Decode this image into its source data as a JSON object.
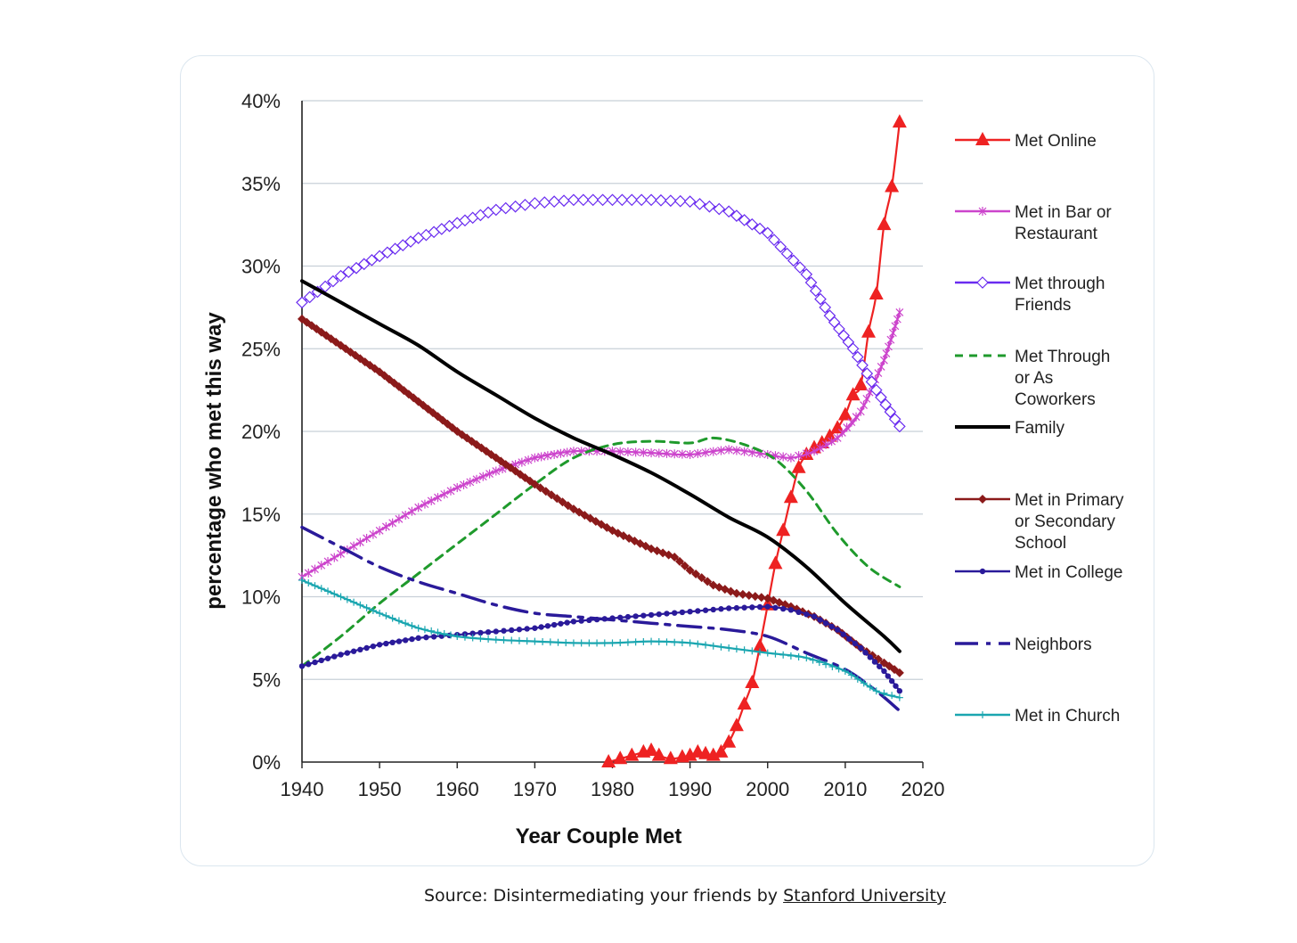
{
  "caption": {
    "text": "Source: Disintermediating your friends by",
    "link_text": "Stanford University"
  },
  "chart_data": {
    "type": "line",
    "title": "",
    "xlabel": "Year Couple Met",
    "ylabel": "percentage who met this way",
    "xlim": [
      1940,
      2020
    ],
    "ylim": [
      0,
      40
    ],
    "x_ticks": [
      "1940",
      "1950",
      "1960",
      "1970",
      "1980",
      "1990",
      "2000",
      "2010",
      "2020"
    ],
    "y_ticks": [
      "0%",
      "5%",
      "10%",
      "15%",
      "20%",
      "25%",
      "30%",
      "35%",
      "40%"
    ],
    "grid": "horizontal",
    "legend_position": "right",
    "series": [
      {
        "name": "Met Online",
        "color": "#ee2222",
        "marker": "triangle",
        "style": "solid",
        "points": [
          [
            1979.5,
            0
          ],
          [
            1981,
            0.2
          ],
          [
            1982.5,
            0.4
          ],
          [
            1984,
            0.6
          ],
          [
            1985,
            0.7
          ],
          [
            1986,
            0.4
          ],
          [
            1987.5,
            0.2
          ],
          [
            1989,
            0.3
          ],
          [
            1990,
            0.4
          ],
          [
            1991,
            0.6
          ],
          [
            1992,
            0.5
          ],
          [
            1993,
            0.4
          ],
          [
            1994,
            0.6
          ],
          [
            1995,
            1.2
          ],
          [
            1996,
            2.2
          ],
          [
            1997,
            3.5
          ],
          [
            1998,
            4.8
          ],
          [
            1999,
            7.0
          ],
          [
            2000,
            9.5
          ],
          [
            2001,
            12.0
          ],
          [
            2002,
            14.0
          ],
          [
            2003,
            16.0
          ],
          [
            2004,
            17.8
          ],
          [
            2005,
            18.6
          ],
          [
            2006,
            19.0
          ],
          [
            2007,
            19.3
          ],
          [
            2008,
            19.7
          ],
          [
            2009,
            20.2
          ],
          [
            2010,
            21.0
          ],
          [
            2011,
            22.2
          ],
          [
            2012,
            22.8
          ],
          [
            2013,
            26.0
          ],
          [
            2014,
            28.3
          ],
          [
            2015,
            32.5
          ],
          [
            2016,
            34.8
          ],
          [
            2017,
            38.7
          ]
        ]
      },
      {
        "name": "Met in Bar or Restaurant",
        "color": "#cc44cc",
        "marker": "star",
        "style": "solid",
        "points": [
          [
            1940,
            11.2
          ],
          [
            1945,
            12.6
          ],
          [
            1950,
            14.0
          ],
          [
            1955,
            15.4
          ],
          [
            1960,
            16.6
          ],
          [
            1965,
            17.6
          ],
          [
            1970,
            18.4
          ],
          [
            1975,
            18.8
          ],
          [
            1980,
            18.8
          ],
          [
            1985,
            18.7
          ],
          [
            1990,
            18.6
          ],
          [
            1995,
            18.9
          ],
          [
            2000,
            18.6
          ],
          [
            2003,
            18.4
          ],
          [
            2006,
            18.8
          ],
          [
            2009,
            19.6
          ],
          [
            2012,
            21.2
          ],
          [
            2015,
            24.3
          ],
          [
            2017,
            27.2
          ]
        ]
      },
      {
        "name": "Met through Friends",
        "color": "#6a2cf0",
        "marker": "diamond-open",
        "style": "solid",
        "points": [
          [
            1940,
            27.8
          ],
          [
            1945,
            29.4
          ],
          [
            1950,
            30.6
          ],
          [
            1955,
            31.7
          ],
          [
            1960,
            32.6
          ],
          [
            1965,
            33.4
          ],
          [
            1970,
            33.8
          ],
          [
            1975,
            34.0
          ],
          [
            1980,
            34.0
          ],
          [
            1985,
            34.0
          ],
          [
            1990,
            33.9
          ],
          [
            1995,
            33.3
          ],
          [
            2000,
            32.0
          ],
          [
            2005,
            29.5
          ],
          [
            2008,
            27.0
          ],
          [
            2011,
            25.0
          ],
          [
            2014,
            22.5
          ],
          [
            2017,
            20.3
          ]
        ]
      },
      {
        "name": "Met Through or As Coworkers",
        "color": "#1f9a2c",
        "marker": "none",
        "style": "dashed",
        "points": [
          [
            1940,
            5.8
          ],
          [
            1945,
            7.6
          ],
          [
            1950,
            9.6
          ],
          [
            1955,
            11.4
          ],
          [
            1960,
            13.2
          ],
          [
            1965,
            15.0
          ],
          [
            1970,
            16.8
          ],
          [
            1975,
            18.4
          ],
          [
            1980,
            19.2
          ],
          [
            1985,
            19.4
          ],
          [
            1990,
            19.3
          ],
          [
            1993,
            19.6
          ],
          [
            1997,
            19.2
          ],
          [
            2001,
            18.3
          ],
          [
            2005,
            16.4
          ],
          [
            2009,
            13.8
          ],
          [
            2013,
            11.8
          ],
          [
            2017,
            10.6
          ]
        ]
      },
      {
        "name": "Family",
        "color": "#000000",
        "marker": "none",
        "style": "solid-thick",
        "points": [
          [
            1940,
            29.1
          ],
          [
            1945,
            27.8
          ],
          [
            1950,
            26.5
          ],
          [
            1955,
            25.2
          ],
          [
            1960,
            23.6
          ],
          [
            1965,
            22.2
          ],
          [
            1970,
            20.8
          ],
          [
            1975,
            19.6
          ],
          [
            1980,
            18.6
          ],
          [
            1985,
            17.5
          ],
          [
            1990,
            16.2
          ],
          [
            1995,
            14.8
          ],
          [
            2000,
            13.6
          ],
          [
            2005,
            11.8
          ],
          [
            2010,
            9.6
          ],
          [
            2015,
            7.6
          ],
          [
            2017,
            6.7
          ]
        ]
      },
      {
        "name": "Met in Primary or Secondary School",
        "color": "#8b1a1a",
        "marker": "diamond",
        "style": "solid",
        "points": [
          [
            1940,
            26.8
          ],
          [
            1945,
            25.2
          ],
          [
            1950,
            23.6
          ],
          [
            1955,
            21.8
          ],
          [
            1960,
            20.0
          ],
          [
            1965,
            18.4
          ],
          [
            1970,
            16.8
          ],
          [
            1975,
            15.3
          ],
          [
            1980,
            14.0
          ],
          [
            1985,
            12.9
          ],
          [
            1988,
            12.4
          ],
          [
            1990,
            11.6
          ],
          [
            1993,
            10.7
          ],
          [
            1996,
            10.2
          ],
          [
            2000,
            9.9
          ],
          [
            2003,
            9.4
          ],
          [
            2006,
            8.8
          ],
          [
            2009,
            8.0
          ],
          [
            2012,
            6.9
          ],
          [
            2015,
            6.0
          ],
          [
            2017,
            5.4
          ]
        ]
      },
      {
        "name": "Met in College",
        "color": "#2a1a9a",
        "marker": "dot",
        "style": "solid",
        "points": [
          [
            1940,
            5.8
          ],
          [
            1945,
            6.5
          ],
          [
            1950,
            7.1
          ],
          [
            1955,
            7.5
          ],
          [
            1960,
            7.7
          ],
          [
            1965,
            7.9
          ],
          [
            1970,
            8.1
          ],
          [
            1975,
            8.5
          ],
          [
            1980,
            8.7
          ],
          [
            1985,
            8.9
          ],
          [
            1990,
            9.1
          ],
          [
            1995,
            9.3
          ],
          [
            2000,
            9.4
          ],
          [
            2003,
            9.2
          ],
          [
            2006,
            8.8
          ],
          [
            2009,
            8.0
          ],
          [
            2012,
            6.9
          ],
          [
            2015,
            5.5
          ],
          [
            2017,
            4.3
          ]
        ]
      },
      {
        "name": "Neighbors",
        "color": "#2a1a9a",
        "marker": "none",
        "style": "dashdot",
        "points": [
          [
            1940,
            14.2
          ],
          [
            1945,
            13.0
          ],
          [
            1950,
            11.8
          ],
          [
            1955,
            10.9
          ],
          [
            1960,
            10.2
          ],
          [
            1965,
            9.5
          ],
          [
            1970,
            9.0
          ],
          [
            1975,
            8.8
          ],
          [
            1980,
            8.6
          ],
          [
            1985,
            8.4
          ],
          [
            1990,
            8.2
          ],
          [
            1995,
            8.0
          ],
          [
            2000,
            7.6
          ],
          [
            2005,
            6.6
          ],
          [
            2010,
            5.6
          ],
          [
            2014,
            4.3
          ],
          [
            2017,
            3.1
          ]
        ]
      },
      {
        "name": "Met in Church",
        "color": "#1aa6b0",
        "marker": "plus",
        "style": "solid",
        "points": [
          [
            1940,
            11.0
          ],
          [
            1945,
            10.0
          ],
          [
            1950,
            9.0
          ],
          [
            1955,
            8.1
          ],
          [
            1960,
            7.6
          ],
          [
            1965,
            7.4
          ],
          [
            1970,
            7.3
          ],
          [
            1975,
            7.2
          ],
          [
            1980,
            7.2
          ],
          [
            1985,
            7.3
          ],
          [
            1990,
            7.2
          ],
          [
            1995,
            6.9
          ],
          [
            2000,
            6.6
          ],
          [
            2005,
            6.3
          ],
          [
            2010,
            5.5
          ],
          [
            2014,
            4.3
          ],
          [
            2017,
            3.9
          ]
        ]
      }
    ]
  }
}
